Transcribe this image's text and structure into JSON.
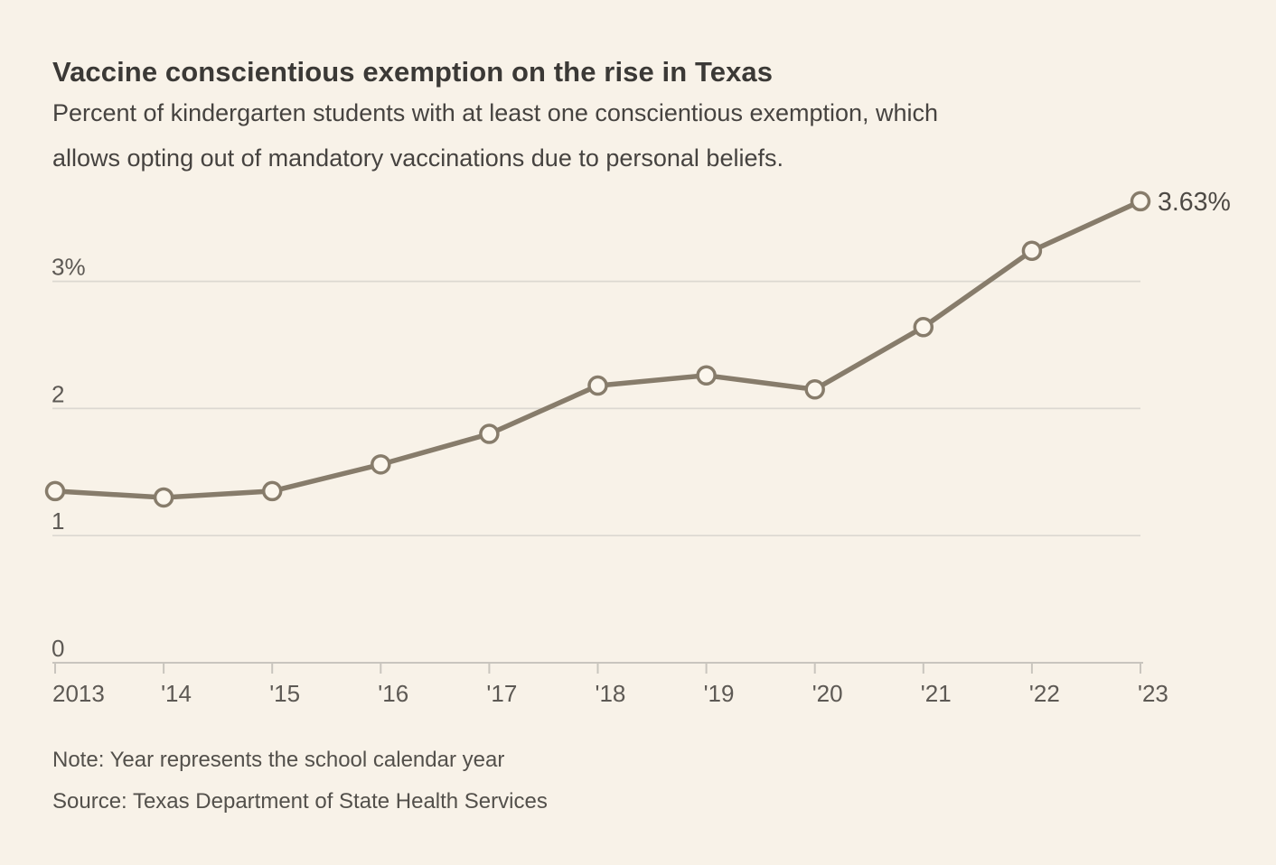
{
  "header": {
    "title": "Vaccine conscientious exemption on the rise in Texas",
    "subtitle": "Percent of kindergarten students with at least one conscientious exemption, which allows opting out of mandatory vaccinations due to personal beliefs.",
    "subtitle_lines": [
      "Percent of kindergarten students with at least one conscientious exemption, which",
      "allows opting out of mandatory vaccinations due to personal beliefs."
    ]
  },
  "chart_data": {
    "type": "line",
    "title": "Vaccine conscientious exemption on the rise in Texas",
    "x_tick_labels": [
      "2013",
      "'14",
      "'15",
      "'16",
      "'17",
      "'18",
      "'19",
      "'20",
      "'21",
      "'22",
      "'23"
    ],
    "years": [
      2013,
      2014,
      2015,
      2016,
      2017,
      2018,
      2019,
      2020,
      2021,
      2022,
      2023
    ],
    "series": [
      {
        "name": "Percent of kindergarten students with conscientious exemption",
        "values": [
          1.35,
          1.3,
          1.35,
          1.56,
          1.8,
          2.18,
          2.26,
          2.15,
          2.64,
          3.24,
          3.63
        ]
      }
    ],
    "end_label": "3.63%",
    "y_ticks": [
      {
        "value": 0,
        "label": "0"
      },
      {
        "value": 1,
        "label": "1"
      },
      {
        "value": 2,
        "label": "2"
      },
      {
        "value": 3,
        "label": "3%"
      }
    ],
    "grid_values": [
      1,
      2,
      3
    ],
    "ylim": [
      0,
      3.9
    ],
    "grid": true,
    "legend_position": "none",
    "colors": {
      "background": "#f8f2e8",
      "line": "#877c6b",
      "marker_fill": "#fbf6ed",
      "gridline": "#dcd8d1",
      "axis": "#c9c5be",
      "axis_label": "#5d5954",
      "end_label": "#4e4a45"
    }
  },
  "footer": {
    "note": "Note: Year represents the school calendar year",
    "source": "Source: Texas Department of State Health Services"
  }
}
